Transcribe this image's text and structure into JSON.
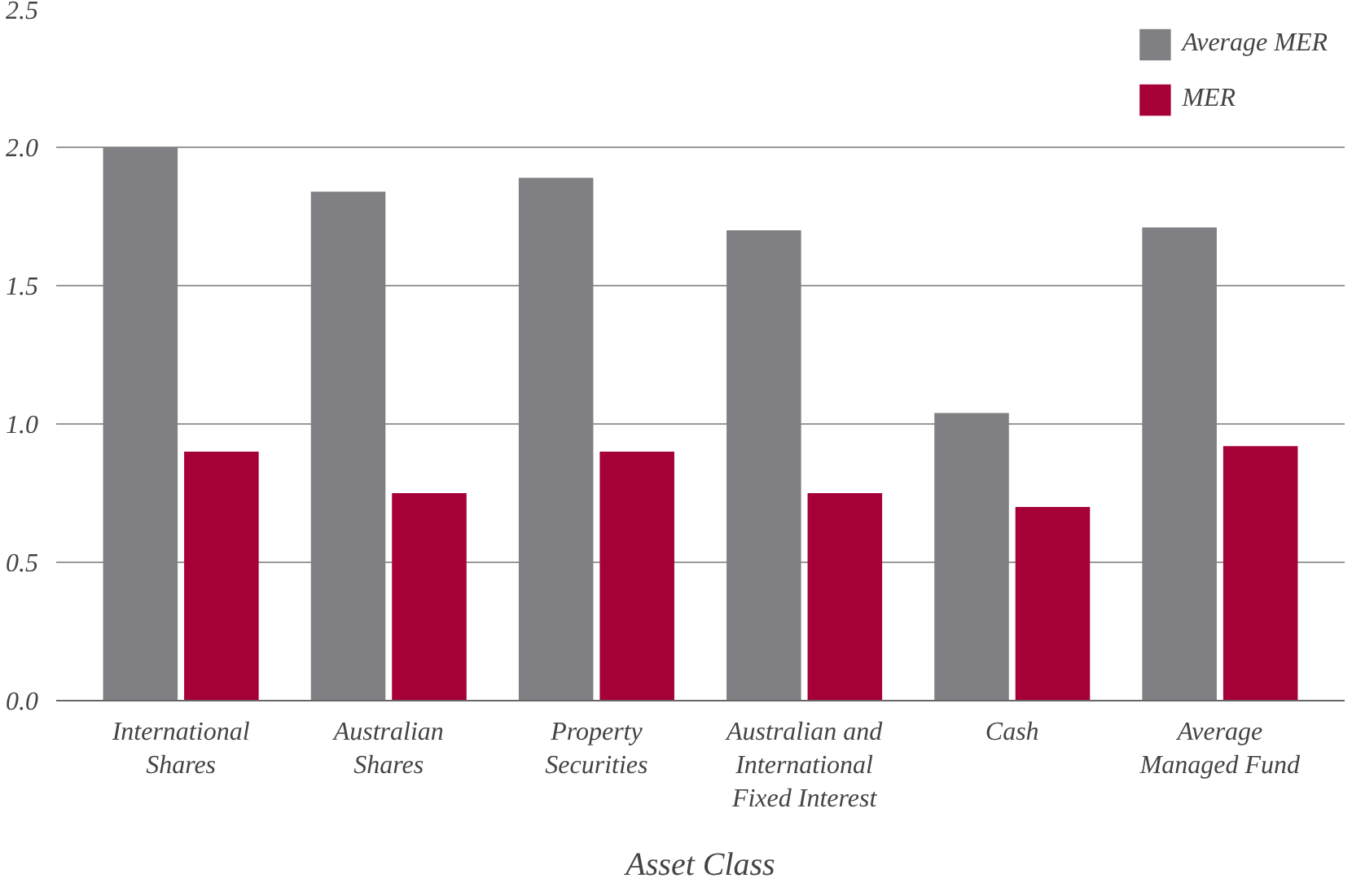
{
  "chart_data": {
    "type": "bar",
    "xlabel": "Asset Class",
    "categories": [
      "International\nShares",
      "Australian\nShares",
      "Property\nSecurities",
      "Australian and\nInternational\nFixed Interest",
      "Cash",
      "Average\nManaged Fund"
    ],
    "series": [
      {
        "name": "Average MER",
        "color": "#808084",
        "values": [
          2.0,
          1.84,
          1.89,
          1.7,
          1.04,
          1.71
        ]
      },
      {
        "name": "MER",
        "color": "#a60036",
        "values": [
          0.9,
          0.75,
          0.9,
          0.75,
          0.7,
          0.92
        ]
      }
    ],
    "ylim": [
      0,
      2.5
    ],
    "yticks": [
      {
        "value": 0,
        "label": "0.0"
      },
      {
        "value": 0.5,
        "label": "0.5"
      },
      {
        "value": 1,
        "label": "1.0"
      },
      {
        "value": 1.5,
        "label": "1.5"
      },
      {
        "value": 2,
        "label": "2.0"
      },
      {
        "value": 2.5,
        "label": "2.5"
      }
    ],
    "grid": "y",
    "legend": "top right"
  }
}
